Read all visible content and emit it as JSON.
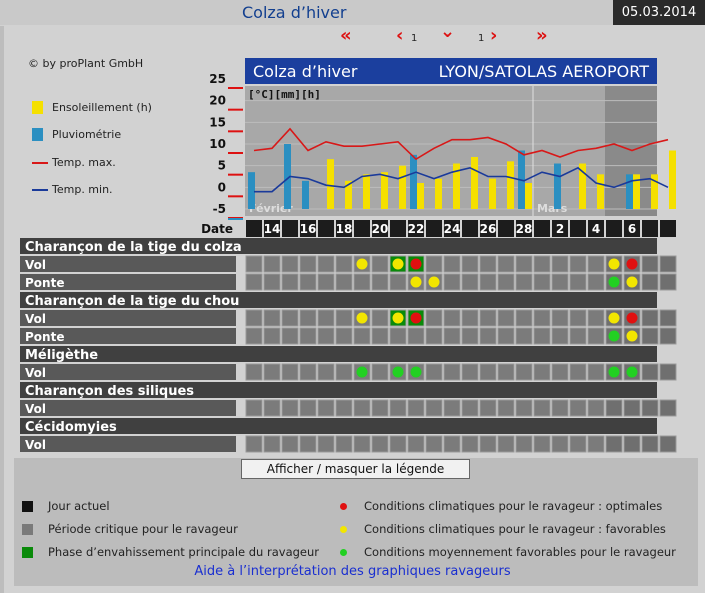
{
  "header": {
    "title": "Colza d’hiver",
    "date": "05.03.2014"
  },
  "nav": {
    "first": "«",
    "prev": "‹",
    "prev_num": "1",
    "down": "⌄",
    "next_num": "1",
    "next": "›",
    "last": "»"
  },
  "copyright": "© by proPlant GmbH",
  "legend": {
    "sun": "Ensoleillement (h)",
    "rain": "Pluviométrie",
    "tmax": "Temp. max.",
    "tmin": "Temp. min.",
    "colors": {
      "sun": "#f5e000",
      "rain": "#2b8fc1",
      "tmax": "#d81818",
      "tmin": "#1a3a9a"
    }
  },
  "chart_header": {
    "title": "Colza d’hiver",
    "station": "LYON/SATOLAS AEROPORT"
  },
  "chart_data": {
    "type": "bar",
    "unit_label": "[°C][mm][h]",
    "y_ticks": [
      "25",
      "20",
      "15",
      "10",
      "5",
      "0",
      "-5"
    ],
    "ylim": [
      -5,
      25
    ],
    "date_label": "Date",
    "x_tick_labels": [
      "14",
      "16",
      "18",
      "20",
      "22",
      "24",
      "26",
      "28",
      "2",
      "4",
      "6"
    ],
    "month_labels": [
      "Février",
      "Mars"
    ],
    "days": 22,
    "series": [
      {
        "name": "Ensoleillement (h)",
        "values": [
          0,
          0,
          0,
          0,
          6.5,
          1.5,
          3,
          3.5,
          5,
          1,
          2,
          5.5,
          7,
          2,
          6,
          1,
          0,
          0,
          5.5,
          3,
          0,
          3,
          3,
          8.5
        ]
      },
      {
        "name": "Pluviométrie",
        "values": [
          3.5,
          0,
          10,
          1.5,
          0,
          0,
          0,
          0,
          0,
          7.5,
          0,
          0,
          0,
          0,
          0,
          8.5,
          0,
          5.5,
          0,
          0,
          0,
          3,
          0,
          0
        ]
      },
      {
        "name": "Temp. max.",
        "values": [
          8.5,
          9,
          13.5,
          8.5,
          10.5,
          9.5,
          9.5,
          10,
          10.5,
          6.5,
          9,
          11,
          11,
          11.5,
          10,
          7.5,
          8.5,
          7,
          8.5,
          9,
          10,
          8.5,
          10,
          11
        ]
      },
      {
        "name": "Temp. min.",
        "values": [
          -1,
          -1,
          2.5,
          2,
          0.5,
          0,
          2.5,
          3,
          2,
          3.5,
          2,
          3.5,
          4.5,
          2.5,
          2.5,
          1.5,
          3.5,
          2.5,
          4.5,
          1,
          0,
          1.5,
          2,
          0
        ]
      }
    ],
    "critical_start_day": 21
  },
  "pests": [
    {
      "name": "Charançon de la tige du colza",
      "rows": [
        {
          "label": "Vol",
          "marks": [
            {
              "day": 7,
              "cell": "",
              "dot": "yellow"
            },
            {
              "day": 9,
              "cell": "green",
              "dot": "yellow"
            },
            {
              "day": 10,
              "cell": "green",
              "dot": "red"
            },
            {
              "day": 21,
              "cell": "",
              "dot": "yellow"
            },
            {
              "day": 22,
              "cell": "",
              "dot": "red"
            }
          ]
        },
        {
          "label": "Ponte",
          "marks": [
            {
              "day": 10,
              "cell": "",
              "dot": "yellow"
            },
            {
              "day": 11,
              "cell": "",
              "dot": "yellow"
            },
            {
              "day": 21,
              "cell": "",
              "dot": "green"
            },
            {
              "day": 22,
              "cell": "",
              "dot": "yellow"
            }
          ]
        }
      ]
    },
    {
      "name": "Charançon de la tige du chou",
      "rows": [
        {
          "label": "Vol",
          "marks": [
            {
              "day": 7,
              "cell": "",
              "dot": "yellow"
            },
            {
              "day": 9,
              "cell": "green",
              "dot": "yellow"
            },
            {
              "day": 10,
              "cell": "green",
              "dot": "red"
            },
            {
              "day": 21,
              "cell": "",
              "dot": "yellow"
            },
            {
              "day": 22,
              "cell": "",
              "dot": "red"
            }
          ]
        },
        {
          "label": "Ponte",
          "marks": [
            {
              "day": 21,
              "cell": "",
              "dot": "green"
            },
            {
              "day": 22,
              "cell": "",
              "dot": "yellow"
            }
          ]
        }
      ]
    },
    {
      "name": "Méligèthe",
      "rows": [
        {
          "label": "Vol",
          "marks": [
            {
              "day": 7,
              "cell": "",
              "dot": "green"
            },
            {
              "day": 9,
              "cell": "",
              "dot": "green"
            },
            {
              "day": 10,
              "cell": "",
              "dot": "green"
            },
            {
              "day": 21,
              "cell": "",
              "dot": "green"
            },
            {
              "day": 22,
              "cell": "",
              "dot": "green"
            }
          ]
        }
      ]
    },
    {
      "name": "Charançon des siliques",
      "rows": [
        {
          "label": "Vol",
          "marks": []
        }
      ]
    },
    {
      "name": "Cécidomyies",
      "rows": [
        {
          "label": "Vol",
          "marks": []
        }
      ]
    }
  ],
  "legend_toggle": "Afficher / masquer la légende",
  "key": {
    "current_day": "Jour actuel",
    "critical_period": "Période critique pour le ravageur",
    "main_invasion": "Phase d’envahissement principale du ravageur",
    "optimal": "Conditions climatiques pour le ravageur : optimales",
    "favorable": "Conditions climatiques pour le ravageur : favorables",
    "medium": "Conditions moyennement favorables pour le ravageur",
    "colors": {
      "current": "#111111",
      "critical": "#7a7a7a",
      "main": "#0a8a0a",
      "red": "#e01010",
      "yellow": "#f2e600",
      "green": "#22d022"
    }
  },
  "help_link": "Aide à l’interprétation des graphiques ravageurs"
}
